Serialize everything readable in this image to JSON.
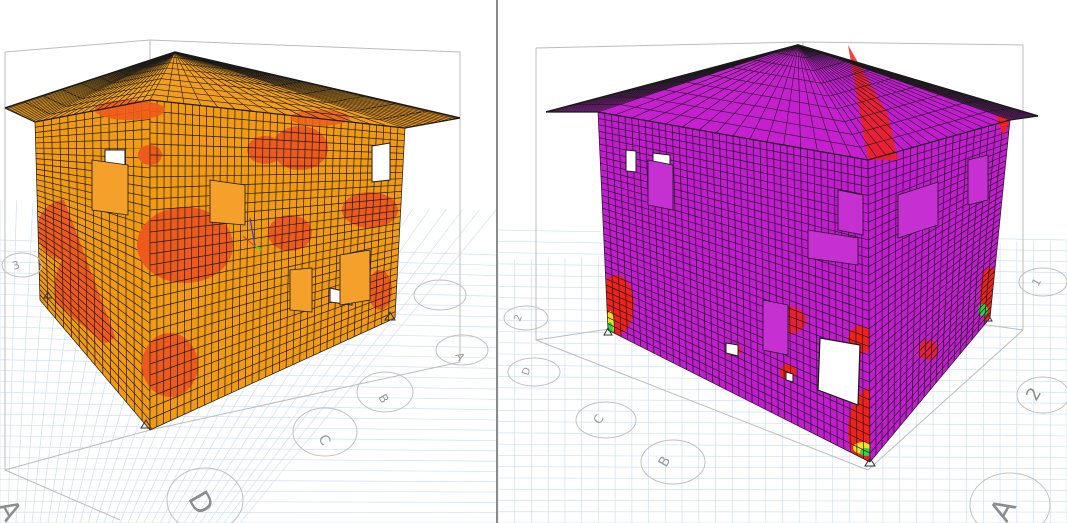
{
  "window": {
    "panes": [
      {
        "name": "left-view",
        "contour_scheme": "orange"
      },
      {
        "name": "right-view",
        "contour_scheme": "magenta"
      }
    ]
  },
  "colors": {
    "background": "#ffffff",
    "grid": "#c7d9ee",
    "grid_fine": "#dde8f5",
    "bounding_box": "#bcbcbc",
    "mesh": "#1a1a1a",
    "left_base": "#f29a12",
    "left_hot": "#ee5a1c",
    "left_roof": "#f39d1c",
    "right_base": "#c21bd0",
    "right_hot": "#f0201a",
    "right_green": "#34d14a",
    "right_yellow": "#f3e11b",
    "divider": "#8a8a8a"
  },
  "left_view": {
    "grid_bubbles": [
      {
        "label": "3"
      },
      {
        "label": "A"
      },
      {
        "label": "B"
      },
      {
        "label": "C"
      },
      {
        "label": "D"
      },
      {
        "label": "A"
      }
    ],
    "icons": [
      "support-pin-icon",
      "axis-triad-icon"
    ]
  },
  "right_view": {
    "grid_bubbles": [
      {
        "label": "1"
      },
      {
        "label": "2"
      },
      {
        "label": "D"
      },
      {
        "label": "C"
      },
      {
        "label": "B"
      },
      {
        "label": "2"
      },
      {
        "label": "A"
      }
    ],
    "icons": [
      "support-pin-icon"
    ]
  }
}
